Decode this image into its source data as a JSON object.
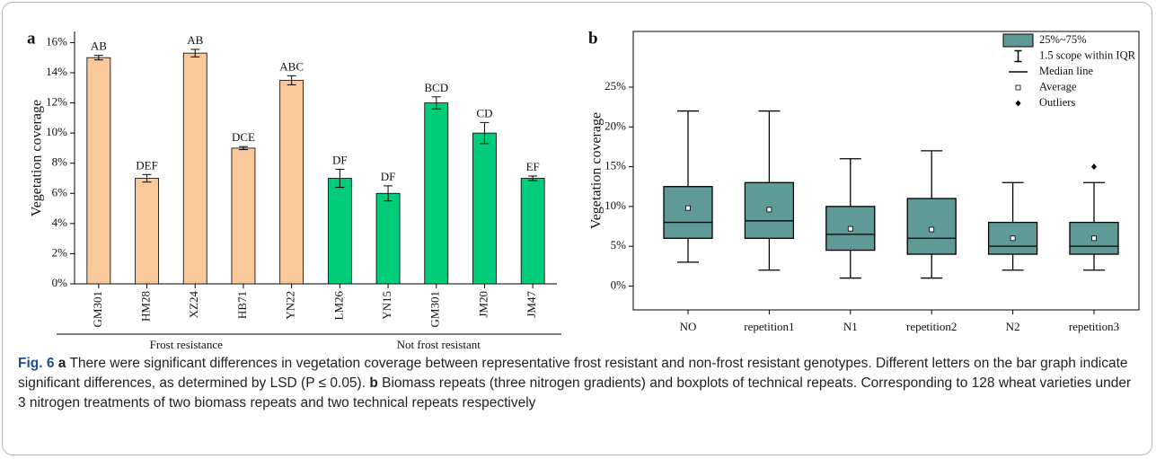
{
  "chart_data": [
    {
      "type": "bar",
      "panel": "a",
      "ylabel": "Vegetation coverage",
      "categories": [
        "GM301",
        "HM28",
        "XZ24",
        "HB71",
        "YN22",
        "LM26",
        "YN15",
        "GM301",
        "JM20",
        "JM47"
      ],
      "series": [
        {
          "name": "Frost resistance",
          "color": "#f9c89b",
          "values": [
            15,
            7,
            15.3,
            9,
            13.5,
            null,
            null,
            null,
            null,
            null
          ],
          "errors": [
            0.15,
            0.25,
            0.25,
            0.1,
            0.3,
            null,
            null,
            null,
            null,
            null
          ],
          "letters": [
            "AB",
            "DEF",
            "AB",
            "DCE",
            "ABC",
            null,
            null,
            null,
            null,
            null
          ]
        },
        {
          "name": "Not frost resistant",
          "color": "#00cc7a",
          "values": [
            null,
            null,
            null,
            null,
            null,
            7,
            6,
            12,
            10,
            7
          ],
          "errors": [
            null,
            null,
            null,
            null,
            null,
            0.6,
            0.5,
            0.4,
            0.7,
            0.15
          ],
          "letters": [
            null,
            null,
            null,
            null,
            null,
            "DF",
            "DF",
            "BCD",
            "CD",
            "EF"
          ]
        }
      ],
      "ylim": [
        0,
        16.5
      ],
      "yticks": [
        {
          "value": 0,
          "label": "0%"
        },
        {
          "value": 2,
          "label": "2%"
        },
        {
          "value": 4,
          "label": "4%"
        },
        {
          "value": 6,
          "label": "6%"
        },
        {
          "value": 8,
          "label": "8%"
        },
        {
          "value": 10,
          "label": "10%"
        },
        {
          "value": 12,
          "label": "12%"
        },
        {
          "value": 14,
          "label": "14%"
        },
        {
          "value": 16,
          "label": "16%"
        }
      ]
    },
    {
      "type": "box",
      "panel": "b",
      "ylabel": "Vegetation coverage",
      "color": "#5f9a96",
      "categories": [
        "NO",
        "repetition1",
        "N1",
        "repetition2",
        "N2",
        "repetition3"
      ],
      "boxes": [
        {
          "min": 3,
          "q1": 6,
          "median": 8,
          "q3": 12.5,
          "max": 22,
          "mean": 9.8,
          "outliers": []
        },
        {
          "min": 2,
          "q1": 6,
          "median": 8.2,
          "q3": 13,
          "max": 22,
          "mean": 9.6,
          "outliers": []
        },
        {
          "min": 1,
          "q1": 4.5,
          "median": 6.5,
          "q3": 10,
          "max": 16,
          "mean": 7.2,
          "outliers": []
        },
        {
          "min": 1,
          "q1": 4,
          "median": 6,
          "q3": 11,
          "max": 17,
          "mean": 7.1,
          "outliers": []
        },
        {
          "min": 2,
          "q1": 4,
          "median": 5,
          "q3": 8,
          "max": 13,
          "mean": 6,
          "outliers": []
        },
        {
          "min": 2,
          "q1": 4,
          "median": 5,
          "q3": 8,
          "max": 13,
          "mean": 6,
          "outliers": [
            15
          ]
        }
      ],
      "legend": [
        "25%~75%",
        "1.5 scope within IQR",
        "Median line",
        "Average",
        "Outliers"
      ],
      "ylim": [
        -3,
        32
      ],
      "yticks": [
        {
          "value": 0,
          "label": "0%"
        },
        {
          "value": 5,
          "label": "5%"
        },
        {
          "value": 10,
          "label": "10%"
        },
        {
          "value": 15,
          "label": "15%"
        },
        {
          "value": 20,
          "label": "20%"
        },
        {
          "value": 25,
          "label": "25%"
        }
      ]
    }
  ],
  "caption": {
    "label": "Fig. 6",
    "parts": [
      {
        "label": "a",
        "text": "There were significant differences in vegetation coverage between representative frost resistant and non-frost resistant genotypes. Different letters on the bar graph indicate significant differences, as determined by LSD (P ≤ 0.05)."
      },
      {
        "label": "b",
        "text": "Biomass repeats (three nitrogen gradients) and boxplots of technical repeats. Corresponding to 128 wheat varieties under 3 nitrogen treatments of two biomass repeats and two technical repeats respectively"
      }
    ]
  }
}
